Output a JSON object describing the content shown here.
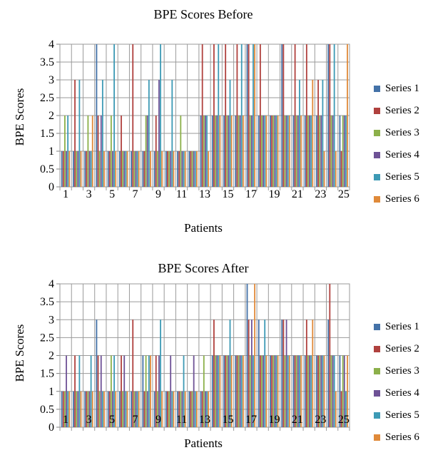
{
  "chart_data": [
    {
      "type": "bar",
      "title": "BPE Scores Before",
      "xlabel": "Patients",
      "ylabel": "BPE Scores",
      "ylim": [
        0,
        4
      ],
      "yticks": [
        "0",
        "0.5",
        "1",
        "1.5",
        "2",
        "2.5",
        "3",
        "3.5",
        "4"
      ],
      "xticks": [
        "1",
        "3",
        "5",
        "7",
        "9",
        "11",
        "13",
        "15",
        "17",
        "19",
        "21",
        "23",
        "25"
      ],
      "categories": [
        1,
        2,
        3,
        4,
        5,
        6,
        7,
        8,
        9,
        10,
        11,
        12,
        13,
        14,
        15,
        16,
        17,
        18,
        19,
        20,
        21,
        22,
        23,
        24,
        25
      ],
      "grid": true,
      "legend_position": "right",
      "series": [
        {
          "name": "Series 1",
          "color": "#4472A8",
          "values": [
            1,
            1,
            1,
            4,
            1,
            1,
            1,
            1,
            1,
            1,
            1,
            1,
            2,
            2,
            2,
            2,
            4,
            2,
            2,
            4,
            2,
            2,
            2,
            4,
            2
          ]
        },
        {
          "name": "Series 2",
          "color": "#B0413E",
          "values": [
            1,
            3,
            1,
            2,
            1,
            2,
            4,
            1,
            2,
            1,
            1,
            1,
            4,
            4,
            4,
            4,
            4,
            4,
            2,
            4,
            4,
            4,
            3,
            4,
            1
          ]
        },
        {
          "name": "Series 3",
          "color": "#8CB04A",
          "values": [
            2,
            1,
            2,
            1,
            2,
            1,
            1,
            2,
            1,
            1,
            2,
            1,
            2,
            2,
            2,
            2,
            2,
            2,
            2,
            2,
            2,
            2,
            2,
            2,
            2
          ]
        },
        {
          "name": "Series 4",
          "color": "#6E5296",
          "values": [
            1,
            1,
            1,
            2,
            1,
            1,
            1,
            2,
            3,
            1,
            1,
            1,
            2,
            2,
            2,
            2,
            2,
            2,
            2,
            2,
            2,
            2,
            2,
            2,
            2
          ]
        },
        {
          "name": "Series 5",
          "color": "#3D9AB5",
          "values": [
            2,
            3,
            1,
            3,
            4,
            1,
            1,
            3,
            4,
            3,
            1,
            1,
            2,
            4,
            3,
            4,
            4,
            2,
            2,
            2,
            3,
            2,
            3,
            4,
            2
          ]
        },
        {
          "name": "Series 6",
          "color": "#E08A3A",
          "values": [
            1,
            1,
            2,
            1,
            1,
            1,
            1,
            1,
            1,
            1,
            1,
            1,
            1,
            2,
            2,
            2,
            4,
            2,
            2,
            2,
            2,
            3,
            1,
            1,
            4
          ]
        }
      ]
    },
    {
      "type": "bar",
      "title": "BPE Scores After",
      "xlabel": "Patients",
      "ylabel": "BPE Scores",
      "ylim": [
        0,
        4
      ],
      "yticks": [
        "0",
        "0.5",
        "1",
        "1.5",
        "2",
        "2.5",
        "3",
        "3.5",
        "4"
      ],
      "xticks": [
        "1",
        "3",
        "5",
        "7",
        "9",
        "11",
        "13",
        "15",
        "17",
        "19",
        "21",
        "23",
        "25"
      ],
      "categories": [
        1,
        2,
        3,
        4,
        5,
        6,
        7,
        8,
        9,
        10,
        11,
        12,
        13,
        14,
        15,
        16,
        17,
        18,
        19,
        20,
        21,
        22,
        23,
        24,
        25
      ],
      "grid": true,
      "legend_position": "right",
      "series": [
        {
          "name": "Series 1",
          "color": "#4472A8",
          "values": [
            1,
            1,
            1,
            3,
            1,
            1,
            1,
            2,
            1,
            1,
            1,
            1,
            1,
            2,
            2,
            2,
            4,
            3,
            2,
            3,
            2,
            2,
            2,
            3,
            2
          ]
        },
        {
          "name": "Series 2",
          "color": "#B0413E",
          "values": [
            1,
            2,
            1,
            2,
            1,
            2,
            3,
            1,
            2,
            1,
            1,
            1,
            1,
            3,
            2,
            2,
            3,
            2,
            2,
            3,
            2,
            3,
            2,
            4,
            1
          ]
        },
        {
          "name": "Series 3",
          "color": "#8CB04A",
          "values": [
            1,
            1,
            1,
            1,
            2,
            1,
            1,
            2,
            1,
            1,
            1,
            1,
            2,
            2,
            2,
            2,
            2,
            2,
            2,
            2,
            2,
            2,
            2,
            2,
            2
          ]
        },
        {
          "name": "Series 4",
          "color": "#6E5296",
          "values": [
            2,
            1,
            1,
            2,
            1,
            2,
            1,
            1,
            2,
            2,
            1,
            2,
            1,
            2,
            2,
            2,
            3,
            2,
            2,
            3,
            2,
            2,
            2,
            2,
            2
          ]
        },
        {
          "name": "Series 5",
          "color": "#3D9AB5",
          "values": [
            1,
            2,
            2,
            1,
            2,
            1,
            1,
            2,
            3,
            1,
            2,
            1,
            1,
            2,
            3,
            2,
            2,
            3,
            2,
            2,
            2,
            2,
            2,
            2,
            1
          ]
        },
        {
          "name": "Series 6",
          "color": "#E08A3A",
          "values": [
            1,
            1,
            1,
            1,
            1,
            1,
            1,
            2,
            1,
            1,
            1,
            1,
            1,
            2,
            2,
            2,
            4,
            2,
            2,
            2,
            2,
            3,
            2,
            1,
            2
          ]
        }
      ]
    }
  ]
}
